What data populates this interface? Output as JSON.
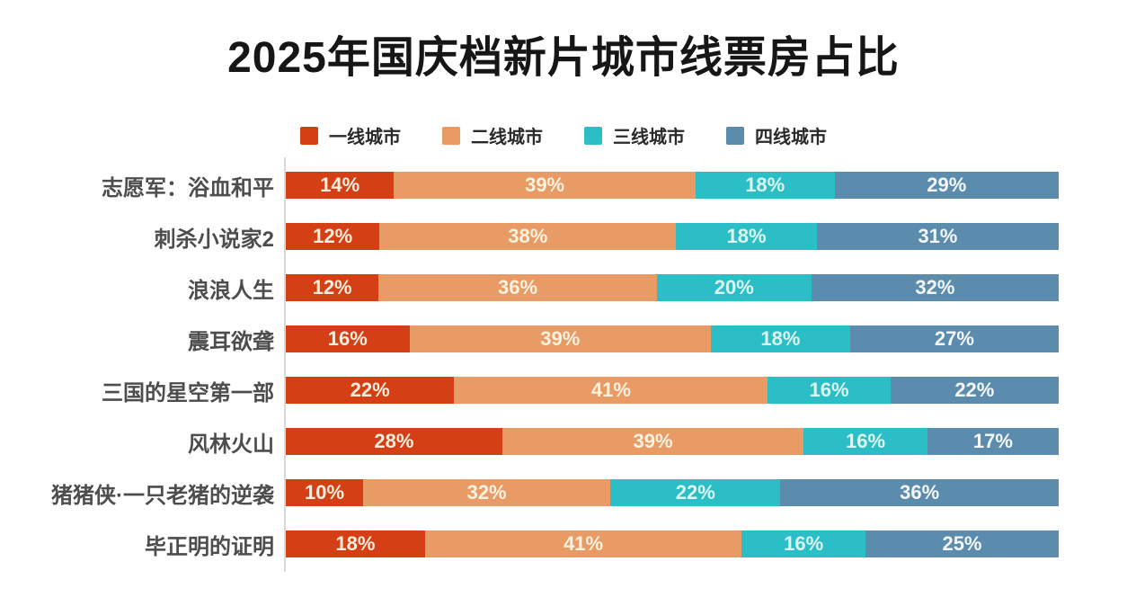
{
  "page": {
    "background": "#ffffff",
    "axis_line_color": "#d9d9d9"
  },
  "chart_data": {
    "type": "bar",
    "orientation": "horizontal",
    "stacked": true,
    "grid": false,
    "legend_position": "top",
    "title": "2025年国庆档新片城市线票房占比",
    "unit": "%",
    "series_names": [
      "一线城市",
      "二线城市",
      "三线城市",
      "四线城市"
    ],
    "series_colors": [
      "#d43f16",
      "#e99b66",
      "#2bbec6",
      "#5c8cad"
    ],
    "value_label_colors": [
      "#f9efdc",
      "#fbf2df",
      "#dcf7f2",
      "#f4f8fb"
    ],
    "categories": [
      "志愿军：浴血和平",
      "刺杀小说家2",
      "浪浪人生",
      "震耳欲聋",
      "三国的星空第一部",
      "风林火山",
      "猪猪侠·一只老猪的逆袭",
      "毕正明的证明"
    ],
    "rows": [
      {
        "label": "志愿军：浴血和平",
        "values": [
          14,
          39,
          18,
          29
        ]
      },
      {
        "label": "刺杀小说家2",
        "values": [
          12,
          38,
          18,
          31
        ]
      },
      {
        "label": "浪浪人生",
        "values": [
          12,
          36,
          20,
          32
        ]
      },
      {
        "label": "震耳欲聋",
        "values": [
          16,
          39,
          18,
          27
        ]
      },
      {
        "label": "三国的星空第一部",
        "values": [
          22,
          41,
          16,
          22
        ]
      },
      {
        "label": "风林火山",
        "values": [
          28,
          39,
          16,
          17
        ]
      },
      {
        "label": "猪猪侠·一只老猪的逆袭",
        "values": [
          10,
          32,
          22,
          36
        ]
      },
      {
        "label": "毕正明的证明",
        "values": [
          18,
          41,
          16,
          25
        ]
      }
    ]
  }
}
